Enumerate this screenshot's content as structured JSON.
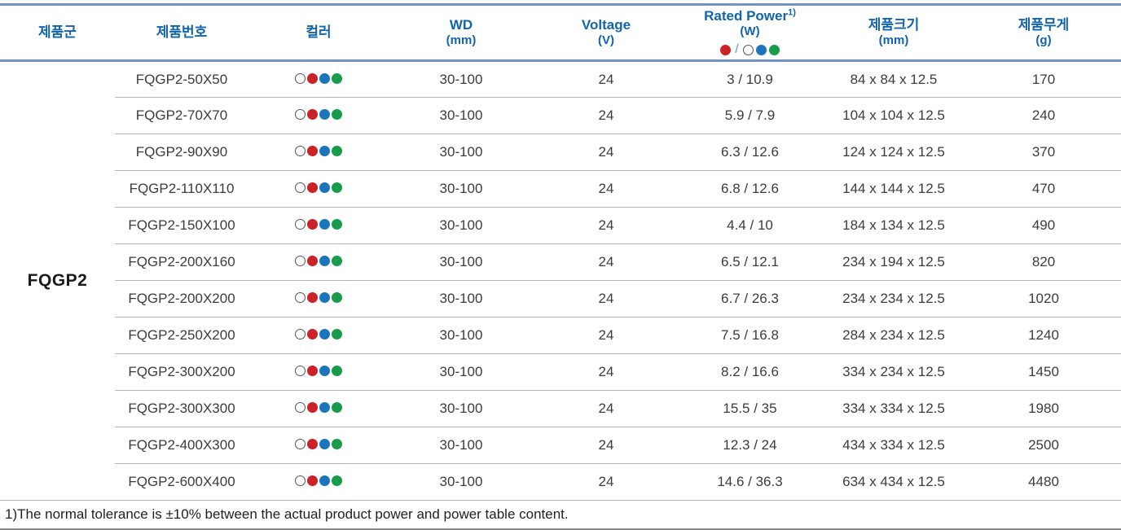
{
  "table": {
    "product_group": "FQGP2",
    "columns": {
      "group": {
        "label": "제품군"
      },
      "part_no": {
        "label": "제품번호"
      },
      "color": {
        "label": "컬러"
      },
      "wd": {
        "label": "WD",
        "unit": "(mm)"
      },
      "voltage": {
        "label": "Voltage",
        "unit": "(V)"
      },
      "rated_power": {
        "label": "Rated Power",
        "footnote_ref": "1)",
        "unit": "(W)",
        "separator": "/"
      },
      "size": {
        "label": "제품크기",
        "unit": "(mm)"
      },
      "weight": {
        "label": "제품무게",
        "unit": "(g)"
      }
    },
    "color_dots": [
      "white",
      "red",
      "blue",
      "green"
    ],
    "rows": [
      {
        "part_no": "FQGP2-50X50",
        "wd": "30-100",
        "voltage": "24",
        "rated_power": "3 / 10.9",
        "size": "84 x 84 x 12.5",
        "weight": "170"
      },
      {
        "part_no": "FQGP2-70X70",
        "wd": "30-100",
        "voltage": "24",
        "rated_power": "5.9 / 7.9",
        "size": "104 x 104 x 12.5",
        "weight": "240"
      },
      {
        "part_no": "FQGP2-90X90",
        "wd": "30-100",
        "voltage": "24",
        "rated_power": "6.3 / 12.6",
        "size": "124 x 124 x 12.5",
        "weight": "370"
      },
      {
        "part_no": "FQGP2-110X110",
        "wd": "30-100",
        "voltage": "24",
        "rated_power": "6.8 / 12.6",
        "size": "144 x 144 x 12.5",
        "weight": "470"
      },
      {
        "part_no": "FQGP2-150X100",
        "wd": "30-100",
        "voltage": "24",
        "rated_power": "4.4 / 10",
        "size": "184 x 134 x 12.5",
        "weight": "490"
      },
      {
        "part_no": "FQGP2-200X160",
        "wd": "30-100",
        "voltage": "24",
        "rated_power": "6.5 / 12.1",
        "size": "234 x 194 x 12.5",
        "weight": "820"
      },
      {
        "part_no": "FQGP2-200X200",
        "wd": "30-100",
        "voltage": "24",
        "rated_power": "6.7 / 26.3",
        "size": "234 x 234 x 12.5",
        "weight": "1020"
      },
      {
        "part_no": "FQGP2-250X200",
        "wd": "30-100",
        "voltage": "24",
        "rated_power": "7.5 / 16.8",
        "size": "284 x 234 x 12.5",
        "weight": "1240"
      },
      {
        "part_no": "FQGP2-300X200",
        "wd": "30-100",
        "voltage": "24",
        "rated_power": "8.2 / 16.6",
        "size": "334 x 234 x 12.5",
        "weight": "1450"
      },
      {
        "part_no": "FQGP2-300X300",
        "wd": "30-100",
        "voltage": "24",
        "rated_power": "15.5 / 35",
        "size": "334 x 334 x 12.5",
        "weight": "1980"
      },
      {
        "part_no": "FQGP2-400X300",
        "wd": "30-100",
        "voltage": "24",
        "rated_power": "12.3 / 24",
        "size": "434 x 334 x 12.5",
        "weight": "2500"
      },
      {
        "part_no": "FQGP2-600X400",
        "wd": "30-100",
        "voltage": "24",
        "rated_power": "14.6 / 36.3",
        "size": "634 x 434 x 12.5",
        "weight": "4480"
      }
    ]
  },
  "colors": {
    "accent_line": "#7293c8",
    "header_text": "#1164ae",
    "dot_red": "#cc2127",
    "dot_blue": "#1c75bc",
    "dot_green": "#169c4b",
    "dot_white": "#ffffff"
  },
  "footnote": "1)The normal tolerance is ±10% between the actual product power and power table content."
}
